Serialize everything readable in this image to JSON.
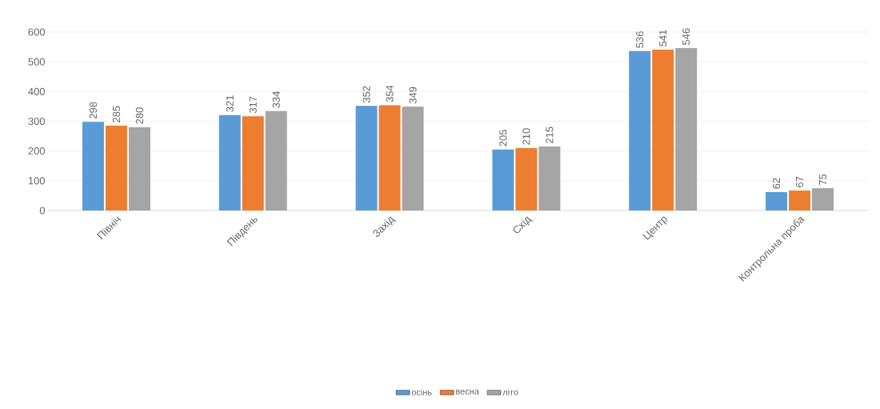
{
  "chart_data": {
    "type": "bar",
    "categories": [
      "Північ",
      "Південь",
      "Захід",
      "Схід",
      "Центр",
      "Контрольна проба"
    ],
    "series": [
      {
        "name": "осінь",
        "color": "#5b9bd5",
        "values": [
          298,
          321,
          352,
          205,
          536,
          62
        ]
      },
      {
        "name": "весна",
        "color": "#ed7d31",
        "values": [
          285,
          317,
          354,
          210,
          541,
          67
        ]
      },
      {
        "name": "літо",
        "color": "#a5a5a5",
        "values": [
          280,
          334,
          349,
          215,
          546,
          75
        ]
      }
    ],
    "ylim": [
      0,
      600
    ],
    "yticks": [
      0,
      100,
      200,
      300,
      400,
      500,
      600
    ],
    "grid": "y",
    "legend": "bottom",
    "data_labels": true
  }
}
